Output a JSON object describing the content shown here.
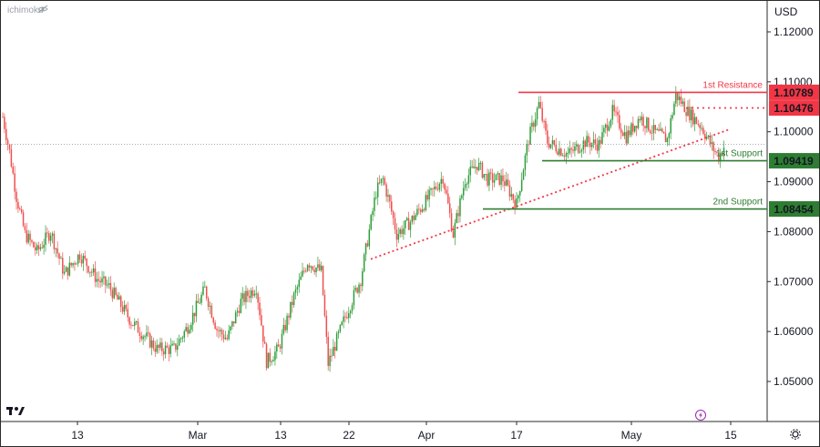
{
  "watermark": "ichimoku",
  "currency": "USD",
  "currency_suffix": "·",
  "chart_data": {
    "type": "candlestick",
    "price_axis": {
      "ticks": [
        "1.12000",
        "1.11000",
        "1.10000",
        "1.09000",
        "1.08000",
        "1.07000",
        "1.06000",
        "1.05000"
      ],
      "range": [
        1.0425,
        1.1215
      ]
    },
    "time_axis": {
      "ticks": [
        "13",
        "Mar",
        "13",
        "22",
        "Apr",
        "17",
        "May",
        "15"
      ]
    },
    "last_price_dotted": 1.0975,
    "levels": [
      {
        "name": "1st Resistance",
        "value": 1.10789,
        "label": "1.10789",
        "color": "#f23645",
        "style": "solid"
      },
      {
        "name": "",
        "value": 1.10476,
        "label": "1.10476",
        "color": "#f23645",
        "style": "dotted"
      },
      {
        "name": "1st Support",
        "value": 1.09419,
        "label": "1.09419",
        "color": "#2e7d32",
        "style": "solid"
      },
      {
        "name": "2nd Support",
        "value": 1.08454,
        "label": "1.08454",
        "color": "#2e7d32",
        "style": "solid"
      }
    ],
    "trendline": {
      "from": 1.0745,
      "to": 1.1005,
      "color": "#f23645",
      "style": "dotted"
    },
    "candles": {
      "up_color": "#26a69a",
      "down_color": "#ef5350",
      "up_color_used": "#2e9e3a",
      "down_color_used": "#ef4f4f",
      "anchors": [
        [
          1.103,
          0
        ],
        [
          1.096,
          4
        ],
        [
          1.087,
          8
        ],
        [
          1.0795,
          13
        ],
        [
          1.076,
          20
        ],
        [
          1.08,
          28
        ],
        [
          1.0715,
          36
        ],
        [
          1.0755,
          45
        ],
        [
          1.0705,
          55
        ],
        [
          1.069,
          62
        ],
        [
          1.062,
          75
        ],
        [
          1.0565,
          90
        ],
        [
          1.0565,
          100
        ],
        [
          1.061,
          108
        ],
        [
          1.0685,
          118
        ],
        [
          1.0605,
          125
        ],
        [
          1.0585,
          131
        ],
        [
          1.066,
          139
        ],
        [
          1.069,
          148
        ],
        [
          1.054,
          154
        ],
        [
          1.0565,
          161
        ],
        [
          1.067,
          170
        ],
        [
          1.074,
          178
        ],
        [
          1.072,
          186
        ],
        [
          1.0535,
          190
        ],
        [
          1.063,
          200
        ],
        [
          1.0705,
          209
        ],
        [
          1.088,
          218
        ],
        [
          1.0905,
          222
        ],
        [
          1.0855,
          226
        ],
        [
          1.0795,
          230
        ],
        [
          1.082,
          238
        ],
        [
          1.0865,
          248
        ],
        [
          1.091,
          257
        ],
        [
          1.0795,
          263
        ],
        [
          1.0905,
          270
        ],
        [
          1.0935,
          277
        ],
        [
          1.0905,
          283
        ],
        [
          1.0905,
          292
        ],
        [
          1.0855,
          300
        ],
        [
          1.0985,
          307
        ],
        [
          1.1055,
          313
        ],
        [
          1.098,
          318
        ],
        [
          1.0955,
          330
        ],
        [
          1.098,
          340
        ],
        [
          1.0975,
          348
        ],
        [
          1.104,
          356
        ],
        [
          1.099,
          364
        ],
        [
          1.103,
          372
        ],
        [
          1.1,
          380
        ],
        [
          1.0985,
          388
        ],
        [
          1.1075,
          393
        ],
        [
          1.104,
          400
        ],
        [
          1.101,
          408
        ],
        [
          1.097,
          414
        ],
        [
          1.095,
          418
        ],
        [
          1.097,
          421
        ]
      ]
    }
  },
  "toolbar": {
    "tv_logo_text": "17",
    "settings_icon": "gear-icon",
    "eye_icon": "eye-icon",
    "lightning_icon": "lightning-icon"
  }
}
